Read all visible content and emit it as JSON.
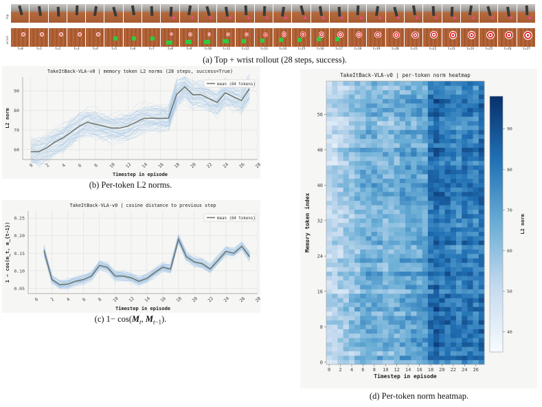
{
  "panel_a": {
    "caption": "(a) Top + wrist rollout (28 steps, success).",
    "row_labels": [
      "top",
      "wrist"
    ],
    "frame_labels": [
      "t=0",
      "t=1",
      "t=2",
      "t=3",
      "t=4",
      "t=5",
      "t=6",
      "t=7",
      "t=8",
      "t=9",
      "t=10",
      "t=11",
      "t=12",
      "t=13",
      "t=14",
      "t=15",
      "t=16",
      "t=17",
      "t=18",
      "t=19",
      "t=20",
      "t=21",
      "t=22",
      "t=23",
      "t=24",
      "t=25",
      "t=26",
      "t=27"
    ]
  },
  "captions": {
    "b": "(b) Per-token L2 norms.",
    "c": "(c) 1− cos(M_t, M_{t−1}).",
    "d": "(d) Per-token norm heatmap."
  },
  "colors": {
    "mean_line": "#6b7368",
    "token_lines": "#a9c9e8",
    "heat_low": "#f7fbff",
    "heat_high": "#08306b",
    "wood": "#b0643a"
  },
  "chart_data": [
    {
      "id": "b",
      "type": "line",
      "title": "TakeItBack-VLA-v0 | memory token L2 norms (28 steps, success=True)",
      "xlabel": "Timestep in episode",
      "ylabel": "L2 norm",
      "xlim": [
        -1,
        28
      ],
      "ylim": [
        55,
        97
      ],
      "xticks": [
        0,
        2,
        4,
        6,
        8,
        10,
        12,
        14,
        16,
        18,
        20,
        22,
        24,
        26,
        28
      ],
      "yticks": [
        60,
        70,
        80,
        90
      ],
      "grid": true,
      "legend": {
        "position": "top-right",
        "entries": [
          "mean (64 tokens)"
        ]
      },
      "x": [
        0,
        1,
        2,
        3,
        4,
        5,
        6,
        7,
        8,
        9,
        10,
        11,
        12,
        13,
        14,
        15,
        16,
        17,
        18,
        19,
        20,
        21,
        22,
        23,
        24,
        25,
        26,
        27
      ],
      "series": [
        {
          "name": "mean (64 tokens)",
          "values": [
            59,
            59,
            61,
            64,
            66,
            69,
            72,
            74,
            73,
            72,
            71,
            71,
            72,
            74,
            76,
            76,
            76,
            76,
            88,
            92,
            88,
            88,
            86,
            84,
            89,
            87,
            85,
            91
          ]
        }
      ]
    },
    {
      "id": "c",
      "type": "line",
      "title": "TakeItBack-VLA-v0 | cosine distance to previous step",
      "xlabel": "Timestep in episode",
      "ylabel": "1 − cos(m_t, m_{t−1})",
      "xlim": [
        -1,
        28
      ],
      "ylim": [
        0.035,
        0.27
      ],
      "xticks": [
        0,
        2,
        4,
        6,
        8,
        10,
        12,
        14,
        16,
        18,
        20,
        22,
        24,
        26,
        28
      ],
      "yticks": [
        0.05,
        0.1,
        0.15,
        0.2,
        0.25
      ],
      "grid": true,
      "legend": {
        "position": "top-right",
        "entries": [
          "mean (64 tokens)"
        ]
      },
      "x": [
        1,
        2,
        3,
        4,
        5,
        6,
        7,
        8,
        9,
        10,
        11,
        12,
        13,
        14,
        15,
        16,
        17,
        18,
        19,
        20,
        21,
        22,
        23,
        24,
        25,
        26,
        27
      ],
      "series": [
        {
          "name": "mean (64 tokens)",
          "values": [
            0.158,
            0.075,
            0.06,
            0.062,
            0.07,
            0.075,
            0.085,
            0.115,
            0.11,
            0.085,
            0.085,
            0.08,
            0.07,
            0.078,
            0.095,
            0.11,
            0.105,
            0.19,
            0.14,
            0.125,
            0.12,
            0.105,
            0.13,
            0.155,
            0.15,
            0.17,
            0.14
          ]
        }
      ]
    },
    {
      "id": "d",
      "type": "heatmap",
      "title": "TakeItBack-VLA-v0 | per-token norm heatmap",
      "xlabel": "Timestep in episode",
      "ylabel": "Memory token index",
      "xticks": [
        0,
        2,
        4,
        6,
        8,
        10,
        12,
        14,
        16,
        18,
        20,
        22,
        24,
        26
      ],
      "yticks": [
        0,
        8,
        16,
        24,
        32,
        40,
        48,
        56
      ],
      "rows": 64,
      "cols": 28,
      "colorbar": {
        "label": "L2 norm",
        "ticks": [
          40,
          50,
          60,
          70,
          80,
          90
        ],
        "range": [
          35,
          98
        ]
      }
    }
  ]
}
